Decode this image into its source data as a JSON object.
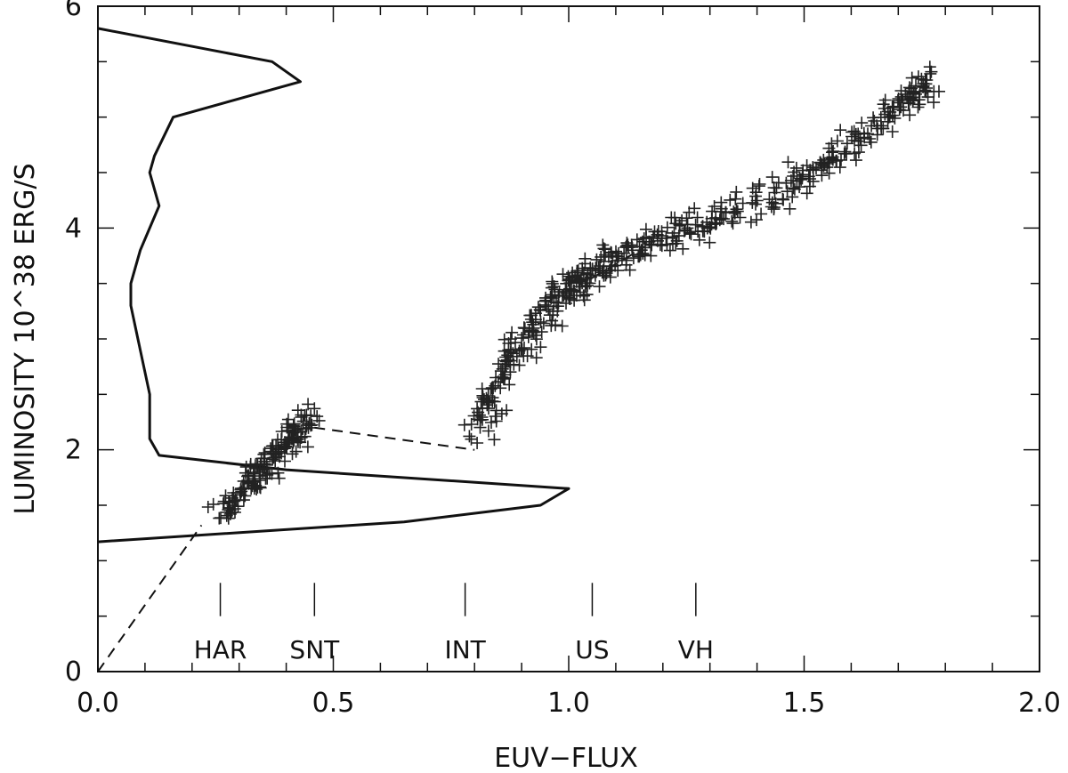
{
  "chart_data": {
    "type": "scatter",
    "title": "",
    "xlabel": "EUV−FLUX",
    "ylabel": "LUMINOSITY 10^38 ERG/S",
    "xlim": [
      0.0,
      2.0
    ],
    "ylim": [
      0.0,
      6.0
    ],
    "x_ticks": [
      {
        "value": 0.0,
        "label": "0.0"
      },
      {
        "value": 0.5,
        "label": "0.5"
      },
      {
        "value": 1.0,
        "label": "1.0"
      },
      {
        "value": 1.5,
        "label": "1.5"
      },
      {
        "value": 2.0,
        "label": "2.0"
      }
    ],
    "y_ticks": [
      {
        "value": 0,
        "label": "0"
      },
      {
        "value": 2,
        "label": "2"
      },
      {
        "value": 4,
        "label": "4"
      },
      {
        "value": 6,
        "label": "6"
      }
    ],
    "x_minor_step": 0.1,
    "y_minor_step": 0.5,
    "grid": false,
    "point_marker": "+",
    "point_clusters": [
      {
        "center": [
          0.26,
          1.42
        ],
        "end": [
          0.45,
          2.27
        ],
        "count": 170
      },
      {
        "center": [
          0.81,
          2.2
        ],
        "end": [
          1.77,
          5.35
        ],
        "count": 520
      }
    ],
    "cluster_track": [
      [
        0.81,
        2.15
      ],
      [
        0.84,
        2.5
      ],
      [
        0.88,
        2.85
      ],
      [
        0.94,
        3.2
      ],
      [
        1.0,
        3.48
      ],
      [
        1.06,
        3.62
      ],
      [
        1.12,
        3.75
      ],
      [
        1.2,
        3.9
      ],
      [
        1.3,
        4.05
      ],
      [
        1.4,
        4.2
      ],
      [
        1.5,
        4.45
      ],
      [
        1.6,
        4.75
      ],
      [
        1.7,
        5.1
      ],
      [
        1.77,
        5.35
      ]
    ],
    "lines": [
      {
        "style": "solid",
        "points": [
          [
            0.0,
            5.8
          ],
          [
            0.37,
            5.5
          ],
          [
            0.43,
            5.32
          ],
          [
            0.16,
            5.0
          ],
          [
            0.12,
            4.65
          ],
          [
            0.11,
            4.5
          ],
          [
            0.13,
            4.2
          ],
          [
            0.09,
            3.8
          ],
          [
            0.07,
            3.5
          ],
          [
            0.07,
            3.3
          ],
          [
            0.09,
            2.9
          ],
          [
            0.11,
            2.5
          ],
          [
            0.11,
            2.1
          ],
          [
            0.13,
            1.95
          ],
          [
            0.4,
            1.82
          ],
          [
            1.0,
            1.65
          ],
          [
            0.94,
            1.5
          ],
          [
            0.65,
            1.35
          ],
          [
            0.0,
            1.17
          ]
        ]
      },
      {
        "style": "dashed",
        "points": [
          [
            0.0,
            0.0
          ],
          [
            0.22,
            1.32
          ]
        ]
      },
      {
        "style": "dashed",
        "points": [
          [
            0.46,
            2.2
          ],
          [
            0.8,
            2.0
          ]
        ]
      },
      {
        "style": "dashed",
        "points": [
          [
            1.05,
            3.55
          ],
          [
            1.15,
            3.8
          ]
        ]
      }
    ],
    "state_labels": [
      {
        "label": "HAR",
        "x": 0.26
      },
      {
        "label": "SNT",
        "x": 0.46
      },
      {
        "label": "INT",
        "x": 0.78
      },
      {
        "label": "US",
        "x": 1.05
      },
      {
        "label": "VH",
        "x": 1.27
      }
    ],
    "state_marker_range": [
      0.5,
      0.8
    ],
    "state_label_y": 0.2
  }
}
